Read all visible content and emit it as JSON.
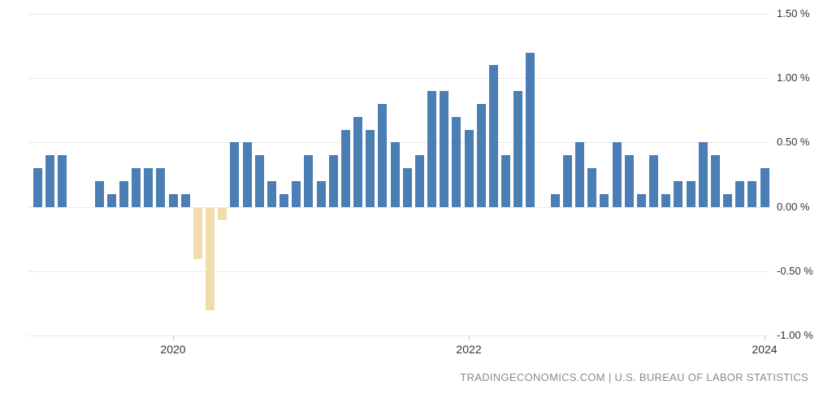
{
  "chart_data": {
    "type": "bar",
    "x": [
      "2019-02",
      "2019-03",
      "2019-04",
      "2019-05",
      "2019-06",
      "2019-07",
      "2019-08",
      "2019-09",
      "2019-10",
      "2019-11",
      "2019-12",
      "2020-01",
      "2020-02",
      "2020-03",
      "2020-04",
      "2020-05",
      "2020-06",
      "2020-07",
      "2020-08",
      "2020-09",
      "2020-10",
      "2020-11",
      "2020-12",
      "2021-01",
      "2021-02",
      "2021-03",
      "2021-04",
      "2021-05",
      "2021-06",
      "2021-07",
      "2021-08",
      "2021-09",
      "2021-10",
      "2021-11",
      "2021-12",
      "2022-01",
      "2022-02",
      "2022-03",
      "2022-04",
      "2022-05",
      "2022-06",
      "2022-07",
      "2022-08",
      "2022-09",
      "2022-10",
      "2022-11",
      "2022-12",
      "2023-01",
      "2023-02",
      "2023-03",
      "2023-04",
      "2023-05",
      "2023-06",
      "2023-07",
      "2023-08",
      "2023-09",
      "2023-10",
      "2023-11",
      "2023-12",
      "2024-01"
    ],
    "values": [
      0.3,
      0.4,
      0.4,
      0.0,
      0.0,
      0.2,
      0.1,
      0.2,
      0.3,
      0.3,
      0.3,
      0.1,
      0.1,
      -0.4,
      -0.8,
      -0.1,
      0.5,
      0.5,
      0.4,
      0.2,
      0.1,
      0.2,
      0.4,
      0.2,
      0.4,
      0.6,
      0.7,
      0.6,
      0.8,
      0.5,
      0.3,
      0.4,
      0.9,
      0.9,
      0.7,
      0.6,
      0.8,
      1.1,
      0.4,
      0.9,
      1.2,
      0.0,
      0.1,
      0.4,
      0.5,
      0.3,
      0.1,
      0.5,
      0.4,
      0.1,
      0.4,
      0.1,
      0.2,
      0.2,
      0.5,
      0.4,
      0.1,
      0.2,
      0.2,
      0.3
    ],
    "ylim": [
      -1.0,
      1.5
    ],
    "y_ticks": [
      {
        "value": 1.5,
        "label": "1.50 %"
      },
      {
        "value": 1.0,
        "label": "1.00 %"
      },
      {
        "value": 0.5,
        "label": "0.50 %"
      },
      {
        "value": 0.0,
        "label": "0.00 %"
      },
      {
        "value": -0.5,
        "label": "-0.50 %"
      },
      {
        "value": -1.0,
        "label": "-1.00 %"
      }
    ],
    "x_ticks": [
      {
        "label": "2020",
        "month": "2020-01"
      },
      {
        "label": "2022",
        "month": "2022-01"
      },
      {
        "label": "2024",
        "month": "2024-01"
      }
    ],
    "grid": true,
    "legend_position": "none",
    "colors": {
      "positive_bar": "#4a7eb5",
      "negative_bar": "#f0ddab",
      "gridline": "#e9e9e9",
      "axis_text": "#333333",
      "footer_text": "#8a8a8a"
    }
  },
  "footer": {
    "source_site": "TRADINGECONOMICS.COM",
    "separator": " | ",
    "source_org": "U.S. BUREAU OF LABOR STATISTICS"
  }
}
